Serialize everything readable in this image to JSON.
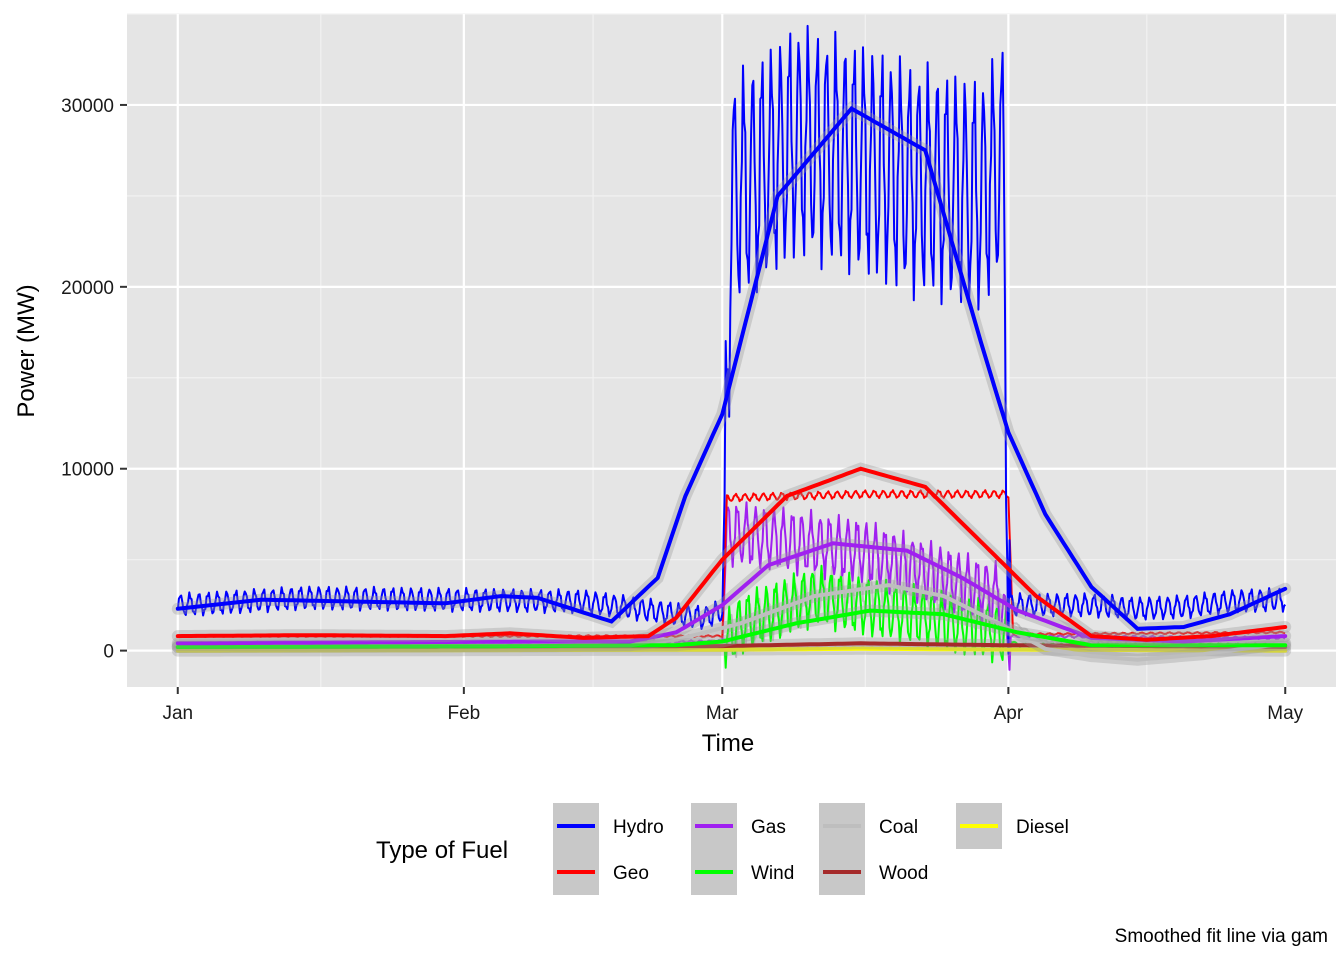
{
  "chart_data": {
    "type": "line",
    "title": "",
    "xlabel": "Time",
    "ylabel": "Power (MW)",
    "caption": "Smoothed fit line via gam",
    "x_ticks": [
      "Jan",
      "Feb",
      "Mar",
      "Apr",
      "May"
    ],
    "y_ticks": [
      "0",
      "10000",
      "20000",
      "30000"
    ],
    "ylim": [
      -2000,
      35000
    ],
    "legend": {
      "title": "Type of Fuel",
      "position": "bottom",
      "entries": [
        "Hydro",
        "Geo",
        "Gas",
        "Wind",
        "Coal",
        "Wood",
        "Diesel"
      ]
    },
    "grid": true,
    "colors": {
      "panel": "#E5E5E5",
      "grid": "#FFFFFF",
      "Hydro": "#0000FF",
      "Geo": "#FF0000",
      "Gas": "#A020F0",
      "Wind": "#00FF00",
      "Coal": "#BEBEBE",
      "Wood": "#A52A2A",
      "Diesel": "#FFFF00"
    },
    "series": [
      {
        "name": "Hydro",
        "raw": [
          [
            1,
            2500
          ],
          [
            15,
            2900
          ],
          [
            30,
            2800
          ],
          [
            45,
            2700
          ],
          [
            58,
            1800
          ],
          [
            60,
            2200
          ],
          [
            60.5,
            14000
          ],
          [
            61,
            25000
          ],
          [
            68,
            28000
          ],
          [
            75,
            27000
          ],
          [
            80,
            26000
          ],
          [
            88,
            25000
          ],
          [
            90.5,
            27000
          ],
          [
            91,
            2500
          ],
          [
            100,
            2500
          ],
          [
            105,
            2300
          ],
          [
            110,
            2400
          ],
          [
            115,
            2700
          ],
          [
            120,
            2800
          ]
        ],
        "smooth": [
          [
            1,
            2300
          ],
          [
            10,
            2800
          ],
          [
            20,
            2700
          ],
          [
            30,
            2600
          ],
          [
            36,
            3000
          ],
          [
            40,
            2900
          ],
          [
            48,
            1600
          ],
          [
            53,
            4000
          ],
          [
            56,
            8500
          ],
          [
            60,
            13000
          ],
          [
            66,
            25000
          ],
          [
            74,
            29800
          ],
          [
            82,
            27500
          ],
          [
            88,
            17000
          ],
          [
            91,
            12000
          ],
          [
            95,
            7500
          ],
          [
            100,
            3500
          ],
          [
            105,
            1200
          ],
          [
            110,
            1300
          ],
          [
            115,
            2000
          ],
          [
            121,
            3400
          ]
        ]
      },
      {
        "name": "Geo",
        "raw": [
          [
            1,
            800
          ],
          [
            30,
            800
          ],
          [
            60,
            800
          ],
          [
            60.5,
            8400
          ],
          [
            75,
            8600
          ],
          [
            90,
            8600
          ],
          [
            91,
            8600
          ],
          [
            91.5,
            900
          ],
          [
            120,
            1000
          ]
        ],
        "smooth": [
          [
            1,
            800
          ],
          [
            15,
            850
          ],
          [
            30,
            800
          ],
          [
            37,
            950
          ],
          [
            45,
            700
          ],
          [
            52,
            800
          ],
          [
            55,
            1800
          ],
          [
            60,
            5000
          ],
          [
            67,
            8500
          ],
          [
            75,
            10000
          ],
          [
            82,
            9000
          ],
          [
            88,
            6000
          ],
          [
            94,
            3000
          ],
          [
            100,
            800
          ],
          [
            106,
            600
          ],
          [
            113,
            800
          ],
          [
            121,
            1300
          ]
        ]
      },
      {
        "name": "Gas",
        "raw": [
          [
            1,
            400
          ],
          [
            30,
            450
          ],
          [
            60,
            500
          ],
          [
            60.5,
            6500
          ],
          [
            75,
            5500
          ],
          [
            90,
            3000
          ],
          [
            91,
            800
          ],
          [
            120,
            700
          ]
        ],
        "smooth": [
          [
            1,
            400
          ],
          [
            20,
            450
          ],
          [
            40,
            500
          ],
          [
            50,
            500
          ],
          [
            55,
            1000
          ],
          [
            60,
            2500
          ],
          [
            65,
            4700
          ],
          [
            72,
            5900
          ],
          [
            80,
            5500
          ],
          [
            86,
            4000
          ],
          [
            92,
            2200
          ],
          [
            100,
            700
          ],
          [
            110,
            500
          ],
          [
            121,
            800
          ]
        ]
      },
      {
        "name": "Wind",
        "raw": [
          [
            1,
            200
          ],
          [
            60,
            200
          ],
          [
            62,
            1500
          ],
          [
            70,
            3000
          ],
          [
            80,
            2000
          ],
          [
            90,
            1000
          ],
          [
            92,
            300
          ],
          [
            120,
            300
          ]
        ],
        "smooth": [
          [
            1,
            200
          ],
          [
            40,
            250
          ],
          [
            55,
            300
          ],
          [
            60,
            500
          ],
          [
            68,
            1500
          ],
          [
            76,
            2200
          ],
          [
            84,
            2000
          ],
          [
            92,
            1000
          ],
          [
            100,
            300
          ],
          [
            121,
            300
          ]
        ]
      },
      {
        "name": "Coal",
        "raw": [
          [
            1,
            300
          ],
          [
            55,
            300
          ],
          [
            60,
            600
          ],
          [
            70,
            3000
          ],
          [
            80,
            4000
          ],
          [
            90,
            2000
          ],
          [
            95,
            500
          ],
          [
            120,
            300
          ]
        ],
        "smooth": [
          [
            1,
            300
          ],
          [
            30,
            250
          ],
          [
            50,
            300
          ],
          [
            55,
            600
          ],
          [
            62,
            1500
          ],
          [
            70,
            3000
          ],
          [
            78,
            3600
          ],
          [
            84,
            3000
          ],
          [
            90,
            1500
          ],
          [
            95,
            100
          ],
          [
            100,
            -300
          ],
          [
            105,
            -500
          ],
          [
            112,
            -200
          ],
          [
            121,
            400
          ]
        ]
      },
      {
        "name": "Wood",
        "raw": [
          [
            1,
            200
          ],
          [
            60,
            250
          ],
          [
            75,
            400
          ],
          [
            90,
            300
          ],
          [
            120,
            200
          ]
        ],
        "smooth": [
          [
            1,
            200
          ],
          [
            60,
            250
          ],
          [
            75,
            400
          ],
          [
            90,
            300
          ],
          [
            121,
            200
          ]
        ]
      },
      {
        "name": "Diesel",
        "raw": [
          [
            1,
            50
          ],
          [
            60,
            80
          ],
          [
            75,
            150
          ],
          [
            90,
            100
          ],
          [
            121,
            50
          ]
        ],
        "smooth": [
          [
            1,
            0
          ],
          [
            60,
            50
          ],
          [
            75,
            100
          ],
          [
            90,
            60
          ],
          [
            121,
            0
          ]
        ]
      }
    ]
  }
}
